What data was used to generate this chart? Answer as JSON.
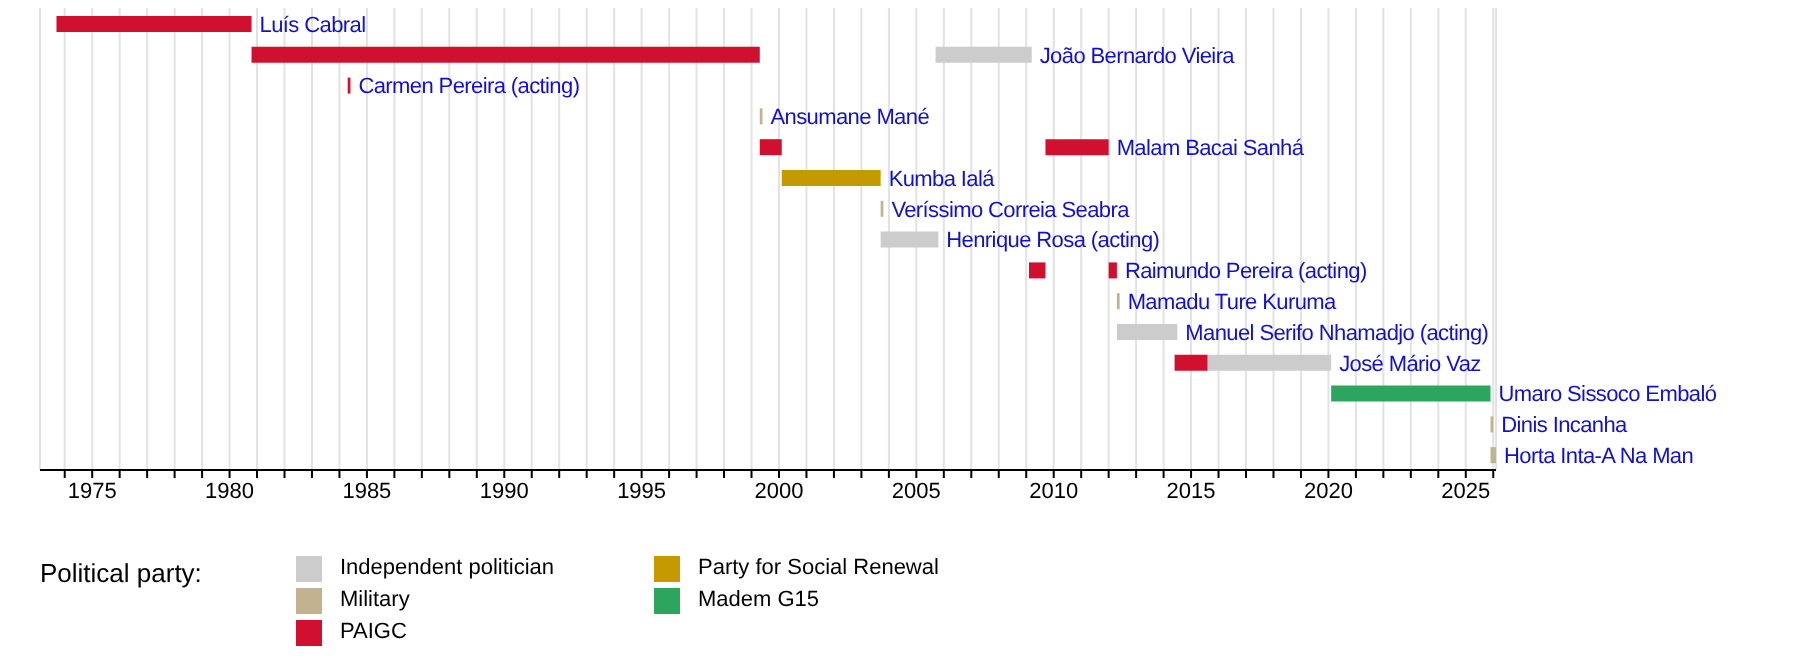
{
  "chart_data": {
    "type": "bar",
    "orientation": "horizontal",
    "legend_title": "Political party:",
    "legend": "bottom",
    "grid": "x",
    "tick_labels": "x",
    "categories": [
      "Luís Cabral",
      "João Bernardo Vieira",
      "Carmen Pereira (acting)",
      "Ansumane Mané",
      "Malam Bacai Sanhá",
      "Kumba Ialá",
      "Veríssimo Correia Seabra",
      "Henrique Rosa (acting)",
      "Raimundo Pereira (acting)",
      "Mamadu Ture Kuruma",
      "Manuel Serifo Nhamadjo (acting)",
      "José Mário Vaz",
      "Umaro Sissoco Embaló",
      "Dinis Incanha",
      "Horta Inta-A Na Man"
    ],
    "xlim": [
      1973.1,
      2026.1
    ],
    "xticks": [
      {
        "value": 1974,
        "label": null
      },
      1975,
      {
        "value": 1976,
        "label": null
      },
      {
        "value": 1977,
        "label": null
      },
      {
        "value": 1978,
        "label": null
      },
      {
        "value": 1979,
        "label": null
      },
      1980,
      {
        "value": 1981,
        "label": null
      },
      {
        "value": 1982,
        "label": null
      },
      {
        "value": 1983,
        "label": null
      },
      {
        "value": 1984,
        "label": null
      },
      1985,
      {
        "value": 1986,
        "label": null
      },
      {
        "value": 1987,
        "label": null
      },
      {
        "value": 1988,
        "label": null
      },
      {
        "value": 1989,
        "label": null
      },
      1990,
      {
        "value": 1991,
        "label": null
      },
      {
        "value": 1992,
        "label": null
      },
      {
        "value": 1993,
        "label": null
      },
      {
        "value": 1994,
        "label": null
      },
      1995,
      {
        "value": 1996,
        "label": null
      },
      {
        "value": 1997,
        "label": null
      },
      {
        "value": 1998,
        "label": null
      },
      {
        "value": 1999,
        "label": null
      },
      2000,
      {
        "value": 2001,
        "label": null
      },
      {
        "value": 2002,
        "label": null
      },
      {
        "value": 2003,
        "label": null
      },
      {
        "value": 2004,
        "label": null
      },
      2005,
      {
        "value": 2006,
        "label": null
      },
      {
        "value": 2007,
        "label": null
      },
      {
        "value": 2008,
        "label": null
      },
      {
        "value": 2009,
        "label": null
      },
      2010,
      {
        "value": 2011,
        "label": null
      },
      {
        "value": 2012,
        "label": null
      },
      {
        "value": 2013,
        "label": null
      },
      {
        "value": 2014,
        "label": null
      },
      2015,
      {
        "value": 2016,
        "label": null
      },
      {
        "value": 2017,
        "label": null
      },
      {
        "value": 2018,
        "label": null
      },
      {
        "value": 2019,
        "label": null
      },
      2020,
      {
        "value": 2021,
        "label": null
      },
      {
        "value": 2022,
        "label": null
      },
      {
        "value": 2023,
        "label": null
      },
      {
        "value": 2024,
        "label": null
      },
      2025,
      {
        "value": 2026,
        "label": null
      }
    ],
    "series": [
      {
        "name": "Independent politician",
        "color": "#cccccc",
        "base": [
          null,
          2005.7,
          null,
          null,
          null,
          null,
          null,
          2003.7,
          null,
          null,
          2012.3,
          2015.6,
          null,
          null,
          null
        ],
        "values": [
          null,
          3.5,
          null,
          null,
          null,
          null,
          null,
          2.1,
          null,
          null,
          2.2,
          4.5,
          null,
          null,
          null
        ]
      },
      {
        "name": "Military",
        "color": "#c2b28f",
        "base": [
          null,
          null,
          null,
          1999.3,
          null,
          null,
          2003.7,
          null,
          null,
          2012.3,
          null,
          null,
          null,
          2025.9,
          2025.9
        ],
        "values": [
          null,
          null,
          null,
          0.1,
          null,
          null,
          0.1,
          null,
          null,
          0.1,
          null,
          null,
          null,
          0.1,
          0.2
        ]
      },
      {
        "name": "PAIGC",
        "color": "#d0102e",
        "base": [
          1973.7,
          1980.8,
          1984.3,
          null,
          1999.3,
          null,
          null,
          null,
          2009.1,
          null,
          null,
          2014.4,
          null,
          null,
          null
        ],
        "values": [
          7.1,
          18.5,
          0.1,
          null,
          0.8,
          null,
          null,
          null,
          0.6,
          null,
          null,
          1.2,
          null,
          null,
          null
        ]
      },
      {
        "name": "Party for Social Renewal",
        "color": "#c59900",
        "base": [
          null,
          null,
          null,
          null,
          null,
          2000.1,
          null,
          null,
          null,
          null,
          null,
          null,
          null,
          null,
          null
        ],
        "values": [
          null,
          null,
          null,
          null,
          null,
          3.6,
          null,
          null,
          null,
          null,
          null,
          null,
          null,
          null,
          null
        ]
      },
      {
        "name": "Madem G15",
        "color": "#2ca55e",
        "base": [
          null,
          null,
          null,
          null,
          null,
          null,
          null,
          null,
          null,
          null,
          null,
          null,
          2020.1,
          null,
          null
        ],
        "values": [
          null,
          null,
          null,
          null,
          null,
          null,
          null,
          null,
          null,
          null,
          null,
          null,
          5.8,
          null,
          null
        ]
      },
      {
        "color": "#d0102e",
        "base": [
          null,
          null,
          null,
          null,
          2009.7,
          null,
          null,
          null,
          2012.0,
          null,
          null,
          null,
          null,
          null,
          null
        ],
        "values": [
          null,
          null,
          null,
          null,
          2.3,
          null,
          null,
          null,
          0.3,
          null,
          null,
          null,
          null,
          null,
          null
        ]
      }
    ]
  }
}
